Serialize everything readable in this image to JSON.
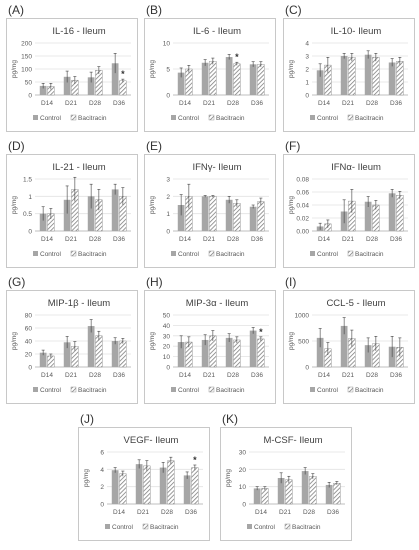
{
  "legend": {
    "control": "Control",
    "bacitracin": "Bacitracin"
  },
  "colors": {
    "control": "#a6a6a6",
    "bacitracin": "#7f7f7f",
    "grid": "#e2e2e2",
    "axis": "#bfbfbf",
    "text": "#595959"
  },
  "chart_data": [
    {
      "label": "(A)",
      "type": "bar",
      "title": "IL-16 - Ileum",
      "ylabel": "pg/mg",
      "categories": [
        "D14",
        "D21",
        "D28",
        "D36"
      ],
      "ylim": [
        0,
        200
      ],
      "yticks": [
        "0",
        "50",
        "100",
        "150",
        "200"
      ],
      "ytick_values": [
        0,
        50,
        100,
        150,
        200
      ],
      "series": [
        {
          "name": "Control",
          "values": [
            35,
            70,
            68,
            122
          ],
          "errors": [
            10,
            22,
            20,
            38
          ]
        },
        {
          "name": "Bacitracin",
          "values": [
            33,
            57,
            95,
            55
          ],
          "errors": [
            12,
            14,
            14,
            6
          ]
        }
      ],
      "significance": [
        {
          "category": "D36",
          "mark": "*"
        }
      ]
    },
    {
      "label": "(B)",
      "type": "bar",
      "title": "IL-6 - Ileum",
      "ylabel": "pg/mg",
      "categories": [
        "D14",
        "D21",
        "D28",
        "D36"
      ],
      "ylim": [
        0,
        10
      ],
      "yticks": [
        "0",
        "5",
        "10"
      ],
      "ytick_values": [
        0,
        5,
        10
      ],
      "series": [
        {
          "name": "Control",
          "values": [
            4.3,
            6.2,
            7.3,
            5.9
          ],
          "errors": [
            0.9,
            0.6,
            0.5,
            0.5
          ]
        },
        {
          "name": "Bacitracin",
          "values": [
            5.0,
            6.5,
            6.0,
            5.9
          ],
          "errors": [
            0.7,
            0.6,
            0.3,
            0.5
          ]
        }
      ],
      "significance": [
        {
          "category": "D28",
          "mark": "*"
        }
      ]
    },
    {
      "label": "(C)",
      "type": "bar",
      "title": "IL-10- Ileum",
      "ylabel": "pg/mg",
      "categories": [
        "D14",
        "D21",
        "D28",
        "D36"
      ],
      "ylim": [
        0,
        4
      ],
      "yticks": [
        "0",
        "1",
        "2",
        "3",
        "4"
      ],
      "ytick_values": [
        0,
        1,
        2,
        3,
        4
      ],
      "series": [
        {
          "name": "Control",
          "values": [
            1.9,
            3.0,
            3.1,
            2.5
          ],
          "errors": [
            0.5,
            0.2,
            0.3,
            0.3
          ]
        },
        {
          "name": "Bacitracin",
          "values": [
            2.3,
            2.9,
            2.9,
            2.6
          ],
          "errors": [
            0.6,
            0.3,
            0.3,
            0.3
          ]
        }
      ],
      "significance": []
    },
    {
      "label": "(D)",
      "type": "bar",
      "title": "IL-21 - Ileum",
      "ylabel": "pg/mg",
      "categories": [
        "D14",
        "D21",
        "D28",
        "D36"
      ],
      "ylim": [
        0,
        1.5
      ],
      "yticks": [
        "0",
        "0.5",
        "1",
        "1.5"
      ],
      "ytick_values": [
        0,
        0.5,
        1,
        1.5
      ],
      "series": [
        {
          "name": "Control",
          "values": [
            0.5,
            0.9,
            1.0,
            1.2
          ],
          "errors": [
            0.2,
            0.4,
            0.35,
            0.15
          ]
        },
        {
          "name": "Bacitracin",
          "values": [
            0.5,
            1.2,
            0.9,
            1.0
          ],
          "errors": [
            0.15,
            0.35,
            0.3,
            0.25
          ]
        }
      ],
      "significance": []
    },
    {
      "label": "(E)",
      "type": "bar",
      "title": "IFNγ- Ileum",
      "ylabel": "pg/mg",
      "categories": [
        "D14",
        "D21",
        "D28",
        "D36"
      ],
      "ylim": [
        0,
        3
      ],
      "yticks": [
        "0",
        "1",
        "2",
        "3"
      ],
      "ytick_values": [
        0,
        1,
        2,
        3
      ],
      "series": [
        {
          "name": "Control",
          "values": [
            1.5,
            2.0,
            1.8,
            1.4
          ],
          "errors": [
            0.6,
            0.05,
            0.2,
            0.1
          ]
        },
        {
          "name": "Bacitracin",
          "values": [
            2.0,
            2.0,
            1.6,
            1.7
          ],
          "errors": [
            0.7,
            0.05,
            0.2,
            0.2
          ]
        }
      ],
      "significance": []
    },
    {
      "label": "(F)",
      "type": "bar",
      "title": "IFNα- Ileum",
      "ylabel": "pg/mg",
      "categories": [
        "D14",
        "D21",
        "D28",
        "D36"
      ],
      "ylim": [
        0,
        0.08
      ],
      "yticks": [
        "0.00",
        "0.02",
        "0.04",
        "0.06",
        "0.08"
      ],
      "ytick_values": [
        0,
        0.02,
        0.04,
        0.06,
        0.08
      ],
      "series": [
        {
          "name": "Control",
          "values": [
            0.007,
            0.03,
            0.045,
            0.058
          ],
          "errors": [
            0.005,
            0.018,
            0.008,
            0.006
          ]
        },
        {
          "name": "Bacitracin",
          "values": [
            0.011,
            0.046,
            0.04,
            0.055
          ],
          "errors": [
            0.006,
            0.018,
            0.007,
            0.006
          ]
        }
      ],
      "significance": []
    },
    {
      "label": "(G)",
      "type": "bar",
      "title": "MIP-1β - Ileum",
      "ylabel": "pg/mg",
      "categories": [
        "D14",
        "D21",
        "D28",
        "D36"
      ],
      "ylim": [
        0,
        80
      ],
      "yticks": [
        "0",
        "20",
        "40",
        "60",
        "80"
      ],
      "ytick_values": [
        0,
        20,
        40,
        60,
        80
      ],
      "series": [
        {
          "name": "Control",
          "values": [
            22,
            38,
            63,
            40
          ],
          "errors": [
            4,
            9,
            10,
            5
          ]
        },
        {
          "name": "Bacitracin",
          "values": [
            17,
            32,
            48,
            40
          ],
          "errors": [
            3,
            7,
            7,
            4
          ]
        }
      ],
      "significance": []
    },
    {
      "label": "(H)",
      "type": "bar",
      "title": "MIP-3α - Ileum",
      "ylabel": "pg/mg",
      "categories": [
        "D14",
        "D21",
        "D28",
        "D36"
      ],
      "ylim": [
        0,
        50
      ],
      "yticks": [
        "0",
        "10",
        "20",
        "30",
        "40",
        "50"
      ],
      "ytick_values": [
        0,
        10,
        20,
        30,
        40,
        50
      ],
      "series": [
        {
          "name": "Control",
          "values": [
            24,
            26,
            28,
            35
          ],
          "errors": [
            6,
            5,
            4,
            3
          ]
        },
        {
          "name": "Bacitracin",
          "values": [
            24,
            30,
            26,
            27
          ],
          "errors": [
            5,
            5,
            3,
            2
          ]
        }
      ],
      "significance": [
        {
          "category": "D36",
          "mark": "*"
        }
      ]
    },
    {
      "label": "(I)",
      "type": "bar",
      "title": "CCL-5 - Ileum",
      "ylabel": "pg/mg",
      "categories": [
        "D14",
        "D21",
        "D28",
        "D36"
      ],
      "ylim": [
        0,
        1000
      ],
      "yticks": [
        "0",
        "500",
        "1000"
      ],
      "ytick_values": [
        0,
        500,
        1000
      ],
      "series": [
        {
          "name": "Control",
          "values": [
            560,
            790,
            420,
            390
          ],
          "errors": [
            180,
            160,
            140,
            200
          ]
        },
        {
          "name": "Bacitracin",
          "values": [
            350,
            550,
            450,
            380
          ],
          "errors": [
            120,
            160,
            140,
            180
          ]
        }
      ],
      "significance": []
    },
    {
      "label": "(J)",
      "type": "bar",
      "title": "VEGF- Ileum",
      "ylabel": "pg/mg",
      "categories": [
        "D14",
        "D21",
        "D28",
        "D36"
      ],
      "ylim": [
        0,
        6
      ],
      "yticks": [
        "0",
        "2",
        "4",
        "6"
      ],
      "ytick_values": [
        0,
        2,
        4,
        6
      ],
      "series": [
        {
          "name": "Control",
          "values": [
            3.9,
            4.6,
            4.2,
            3.3
          ],
          "errors": [
            0.3,
            0.5,
            0.6,
            0.4
          ]
        },
        {
          "name": "Bacitracin",
          "values": [
            3.5,
            4.4,
            5.0,
            4.2
          ],
          "errors": [
            0.3,
            0.6,
            0.4,
            0.3
          ]
        }
      ],
      "significance": [
        {
          "category": "D36",
          "mark": "*"
        }
      ]
    },
    {
      "label": "(K)",
      "type": "bar",
      "title": "M-CSF- Ileum",
      "ylabel": "pg/mg",
      "categories": [
        "D14",
        "D21",
        "D28",
        "D36"
      ],
      "ylim": [
        0,
        30
      ],
      "yticks": [
        "0",
        "10",
        "20",
        "30"
      ],
      "ytick_values": [
        0,
        10,
        20,
        30
      ],
      "series": [
        {
          "name": "Control",
          "values": [
            9,
            15,
            19,
            11
          ],
          "errors": [
            1,
            3,
            2,
            1.5
          ]
        },
        {
          "name": "Bacitracin",
          "values": [
            9,
            14,
            16,
            12
          ],
          "errors": [
            1,
            2,
            1.5,
            1
          ]
        }
      ],
      "significance": []
    }
  ]
}
